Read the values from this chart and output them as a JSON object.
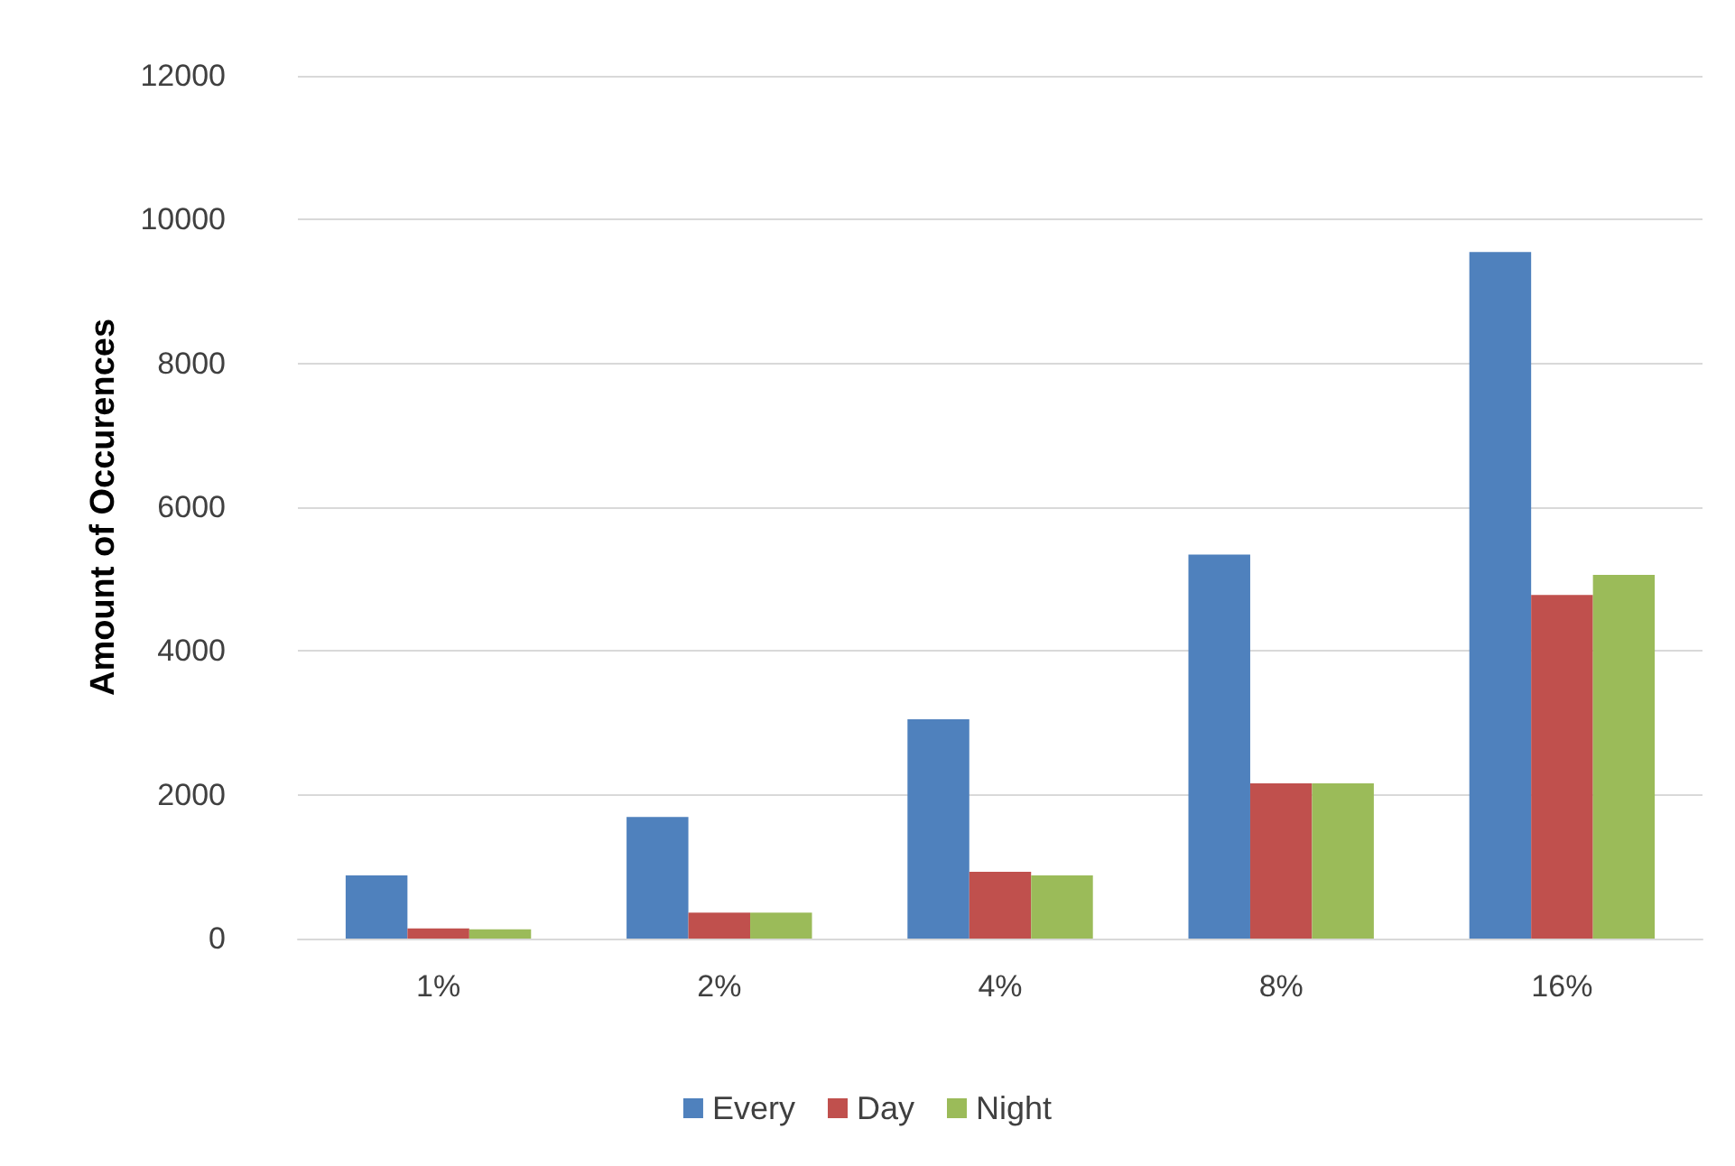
{
  "chart_data": {
    "type": "bar",
    "ylabel": "Amount of Occurences",
    "categories": [
      "1%",
      "2%",
      "4%",
      "8%",
      "16%"
    ],
    "series": [
      {
        "name": "Every",
        "color": "#4f81bd",
        "values": [
          880,
          1690,
          3050,
          5340,
          9550
        ]
      },
      {
        "name": "Day",
        "color": "#c0504d",
        "values": [
          140,
          360,
          930,
          2160,
          4780
        ]
      },
      {
        "name": "Night",
        "color": "#9bbb59",
        "values": [
          130,
          360,
          880,
          2160,
          5060
        ]
      }
    ],
    "ylim": [
      0,
      12000
    ],
    "yticks": [
      0,
      2000,
      4000,
      6000,
      8000,
      10000,
      12000
    ],
    "grid": "y",
    "legend": "bottom"
  }
}
